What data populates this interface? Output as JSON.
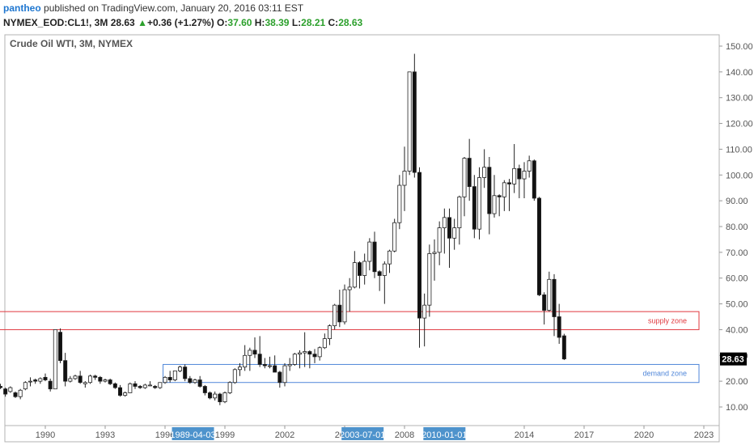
{
  "header": {
    "user": "pantheo",
    "published_text": "published on TradingView.com, January 20, 2016 03:11 EST",
    "symbol": "NYMEX_EOD:CL1!, 3M",
    "last": "28.63",
    "change": "+0.36 (+1.27%)",
    "o_label": "O:",
    "o_value": "37.60",
    "h_label": "H:",
    "h_value": "38.39",
    "l_label": "L:",
    "l_value": "28.21",
    "c_label": "C:",
    "c_value": "28.63",
    "up_arrow": "▲"
  },
  "chart_data": {
    "type": "candlestick",
    "title": "Crude Oil WTI, 3M, NYMEX",
    "ylim": [
      5,
      155
    ],
    "y_ticks": [
      "10.00",
      "20.00",
      "30.00",
      "40.00",
      "50.00",
      "60.00",
      "70.00",
      "80.00",
      "90.00",
      "100.00",
      "110.00",
      "120.00",
      "130.00",
      "140.00",
      "150.00"
    ],
    "y_tick_values": [
      10,
      20,
      30,
      40,
      50,
      60,
      70,
      80,
      90,
      100,
      110,
      120,
      130,
      140,
      150
    ],
    "x_ticks": [
      "1990",
      "1993",
      "1996",
      "1999",
      "2002",
      "2005",
      "2008",
      "2014",
      "2017",
      "2020",
      "2023"
    ],
    "x_tick_years": [
      1990,
      1993,
      1996,
      1999,
      2002,
      2005,
      2008,
      2014,
      2017,
      2020,
      2023
    ],
    "x_highlights": [
      {
        "label": "1989-04-03",
        "year": 1997.4
      },
      {
        "label": "2003-07-01",
        "year": 2005.9
      },
      {
        "label": "2010-01-01",
        "year": 2010.0
      }
    ],
    "last_price_label": "28.63",
    "last_price": 28.63,
    "zones": [
      {
        "name": "supply zone",
        "low": 40,
        "high": 47,
        "from_year": 1987.0,
        "color": "#e0393e"
      },
      {
        "name": "demand zone",
        "low": 19.5,
        "high": 26.5,
        "from_year": 1995.9,
        "color": "#4f86d9"
      }
    ],
    "ohlc": [
      [
        1987.75,
        18,
        19,
        17,
        17.5
      ],
      [
        1988.0,
        17,
        17.5,
        14,
        15
      ],
      [
        1988.25,
        16,
        18,
        15.5,
        17.5
      ],
      [
        1988.5,
        15.5,
        16,
        13.5,
        14
      ],
      [
        1988.75,
        14,
        17,
        13,
        16.5
      ],
      [
        1989.0,
        17,
        20,
        16.5,
        19.5
      ],
      [
        1989.25,
        20,
        21.5,
        18,
        20
      ],
      [
        1989.5,
        20.5,
        21,
        19,
        20
      ],
      [
        1989.75,
        20,
        21.5,
        19,
        21
      ],
      [
        1990.0,
        21.5,
        23,
        20,
        20.5
      ],
      [
        1990.25,
        20,
        21,
        16,
        17
      ],
      [
        1990.5,
        17,
        40,
        17,
        40
      ],
      [
        1990.75,
        39,
        40.5,
        27,
        28
      ],
      [
        1991.0,
        28,
        31,
        18,
        20
      ],
      [
        1991.25,
        20,
        22,
        19.5,
        21
      ],
      [
        1991.5,
        21,
        22.5,
        20.5,
        22
      ],
      [
        1991.75,
        22,
        24,
        19,
        19.5
      ],
      [
        1992.0,
        19,
        20,
        17.5,
        19.5
      ],
      [
        1992.25,
        19.5,
        22.5,
        19,
        22
      ],
      [
        1992.5,
        22,
        22.5,
        20.5,
        21.5
      ],
      [
        1992.75,
        21.5,
        22,
        19,
        20
      ],
      [
        1993.0,
        20,
        21,
        19.5,
        20.5
      ],
      [
        1993.25,
        20.5,
        21,
        18.5,
        19
      ],
      [
        1993.5,
        19,
        19.5,
        17,
        17.5
      ],
      [
        1993.75,
        17.5,
        18.5,
        14,
        14.5
      ],
      [
        1994.0,
        14.5,
        16,
        14,
        15.5
      ],
      [
        1994.25,
        15.5,
        19.5,
        15.5,
        19
      ],
      [
        1994.5,
        19,
        20,
        17,
        18
      ],
      [
        1994.75,
        18,
        18.5,
        17,
        17.5
      ],
      [
        1995.0,
        17.5,
        19,
        17,
        18.5
      ],
      [
        1995.25,
        18.5,
        20,
        18,
        18.5
      ],
      [
        1995.5,
        18,
        18.5,
        17,
        17.5
      ],
      [
        1995.75,
        17.5,
        19.5,
        17,
        19.5
      ],
      [
        1996.0,
        19.5,
        22,
        19,
        21.5
      ],
      [
        1996.25,
        21.5,
        24,
        19.5,
        20.5
      ],
      [
        1996.5,
        20.5,
        24,
        20,
        24
      ],
      [
        1996.75,
        24,
        26,
        23.5,
        25.5
      ],
      [
        1997.0,
        25.5,
        26.5,
        20,
        21
      ],
      [
        1997.25,
        21,
        22,
        19,
        19.5
      ],
      [
        1997.5,
        19.5,
        21,
        19,
        20.5
      ],
      [
        1997.75,
        20.5,
        22,
        17.5,
        18
      ],
      [
        1998.0,
        18,
        18.5,
        14.5,
        15.5
      ],
      [
        1998.25,
        15.5,
        16,
        13,
        13.5
      ],
      [
        1998.5,
        13.5,
        16,
        12.5,
        15
      ],
      [
        1998.75,
        15,
        15.5,
        10.7,
        12
      ],
      [
        1999.0,
        12,
        16,
        11.5,
        15.5
      ],
      [
        1999.25,
        15.5,
        20,
        15,
        19.5
      ],
      [
        1999.5,
        19.5,
        25,
        19,
        24.5
      ],
      [
        1999.75,
        24.5,
        27,
        22,
        25.5
      ],
      [
        2000.0,
        25.5,
        34,
        24,
        30
      ],
      [
        2000.25,
        30,
        33,
        24,
        32
      ],
      [
        2000.5,
        32,
        37,
        29,
        30.5
      ],
      [
        2000.75,
        30.5,
        37.5,
        25.5,
        26.5
      ],
      [
        2001.0,
        26.5,
        29,
        25,
        26
      ],
      [
        2001.25,
        26,
        29.5,
        25,
        26
      ],
      [
        2001.5,
        26,
        30,
        23.5,
        23.5
      ],
      [
        2001.75,
        23.5,
        24,
        17.5,
        19.5
      ],
      [
        2002.0,
        19.5,
        27,
        18,
        26
      ],
      [
        2002.25,
        26,
        29,
        24,
        26.5
      ],
      [
        2002.5,
        26.5,
        31,
        26,
        30.5
      ],
      [
        2002.75,
        30.5,
        32,
        25,
        31
      ],
      [
        2003.0,
        31,
        39,
        25.5,
        31.5
      ],
      [
        2003.25,
        31.5,
        32,
        25,
        30.5
      ],
      [
        2003.5,
        30.5,
        32.5,
        27,
        29.5
      ],
      [
        2003.75,
        29.5,
        33.5,
        28,
        33
      ],
      [
        2004.0,
        33,
        38.5,
        32.5,
        36.5
      ],
      [
        2004.25,
        36.5,
        42,
        34,
        41.5
      ],
      [
        2004.5,
        41.5,
        50,
        40,
        49.5
      ],
      [
        2004.75,
        49.5,
        55.5,
        41,
        43
      ],
      [
        2005.0,
        43,
        57.5,
        42,
        55.5
      ],
      [
        2005.25,
        55.5,
        60,
        47,
        56.5
      ],
      [
        2005.5,
        56.5,
        70.5,
        56,
        66
      ],
      [
        2005.75,
        66,
        66.5,
        56,
        61
      ],
      [
        2006.0,
        61,
        69.5,
        57.5,
        66.5
      ],
      [
        2006.25,
        66.5,
        75.5,
        63,
        74
      ],
      [
        2006.5,
        74,
        78,
        60,
        62.5
      ],
      [
        2006.75,
        62.5,
        63,
        55,
        61
      ],
      [
        2007.0,
        61,
        66.5,
        50,
        65.5
      ],
      [
        2007.25,
        65.5,
        71,
        62,
        70.5
      ],
      [
        2007.5,
        70.5,
        83,
        70,
        81.5
      ],
      [
        2007.75,
        81.5,
        100,
        79,
        96
      ],
      [
        2008.0,
        96,
        111,
        86,
        101.5
      ],
      [
        2008.25,
        101.5,
        140,
        100,
        140
      ],
      [
        2008.5,
        140,
        147,
        99,
        101
      ],
      [
        2008.75,
        101,
        103,
        33,
        44.5
      ],
      [
        2009.0,
        44.5,
        54,
        33.5,
        49.5
      ],
      [
        2009.25,
        49.5,
        73,
        45,
        69.5
      ],
      [
        2009.5,
        69.5,
        75,
        59,
        70
      ],
      [
        2009.75,
        70,
        82,
        65,
        79.5
      ],
      [
        2010.0,
        79.5,
        87,
        69.5,
        83.5
      ],
      [
        2010.25,
        83.5,
        87,
        64,
        75.5
      ],
      [
        2010.5,
        75.5,
        83,
        71,
        79.5
      ],
      [
        2010.75,
        79.5,
        92,
        73,
        91.5
      ],
      [
        2011.0,
        91.5,
        107,
        84,
        106.5
      ],
      [
        2011.25,
        106.5,
        114,
        90,
        95.5
      ],
      [
        2011.5,
        95.5,
        100,
        75.5,
        79
      ],
      [
        2011.75,
        79,
        103,
        75,
        99
      ],
      [
        2012.0,
        99,
        110,
        95,
        103
      ],
      [
        2012.25,
        103,
        107,
        77,
        85
      ],
      [
        2012.5,
        85,
        100,
        83.5,
        92
      ],
      [
        2012.75,
        92,
        92.5,
        84,
        91.5
      ],
      [
        2013.0,
        91.5,
        98,
        86,
        97
      ],
      [
        2013.25,
        97,
        98.5,
        86,
        96.5
      ],
      [
        2013.5,
        96.5,
        112,
        93,
        102.5
      ],
      [
        2013.75,
        102.5,
        104,
        91,
        98.5
      ],
      [
        2014.0,
        98.5,
        105,
        91,
        101.5
      ],
      [
        2014.25,
        101.5,
        107.5,
        99,
        105.5
      ],
      [
        2014.5,
        105.5,
        106,
        90,
        91
      ],
      [
        2014.75,
        91,
        91.5,
        53,
        53.5
      ],
      [
        2015.0,
        53.5,
        54.5,
        42,
        47.5
      ],
      [
        2015.25,
        47.5,
        62.5,
        47,
        59.5
      ],
      [
        2015.5,
        59.5,
        61.5,
        37.5,
        45
      ],
      [
        2015.75,
        45,
        50,
        34.5,
        37
      ],
      [
        2016.0,
        37.6,
        38.39,
        28.21,
        28.63
      ]
    ]
  }
}
